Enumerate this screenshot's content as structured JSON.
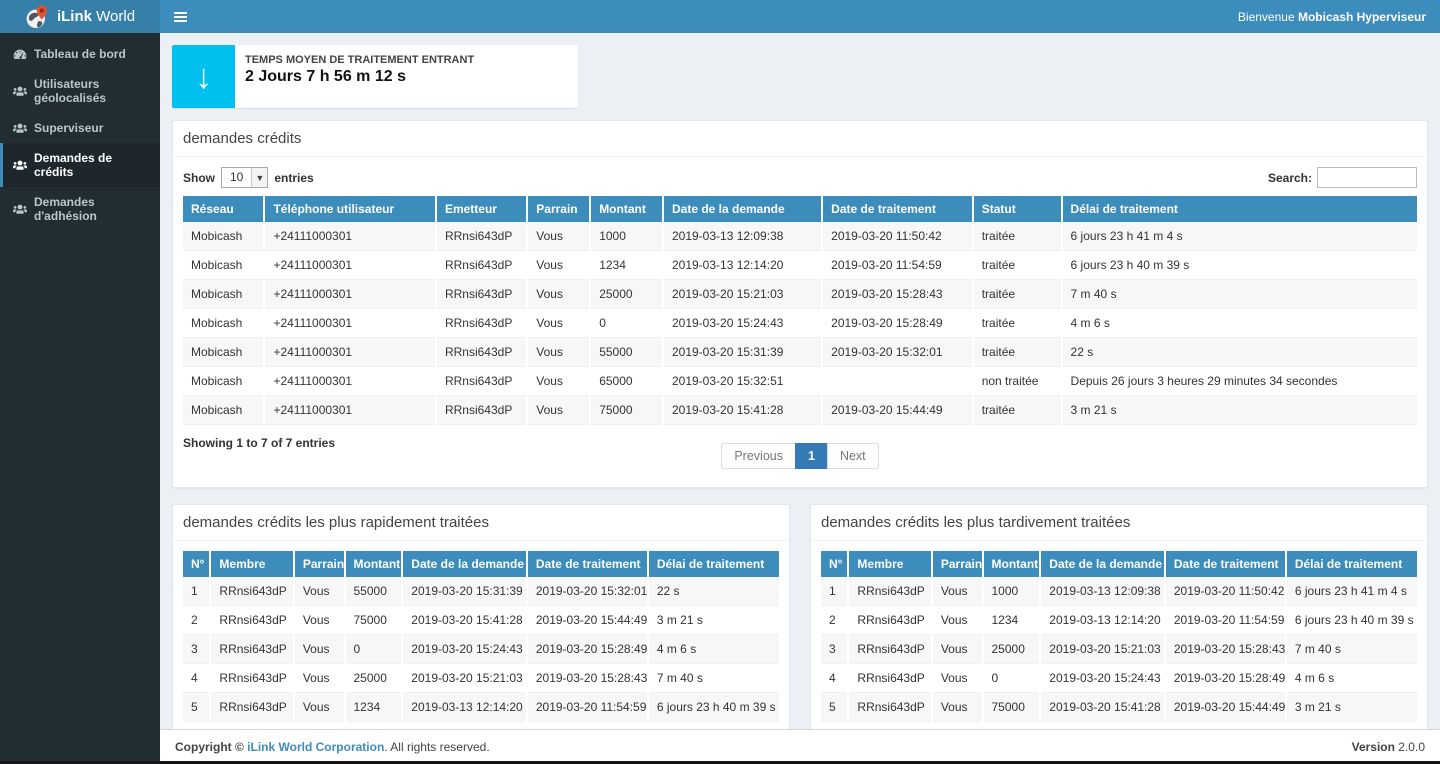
{
  "brand": {
    "name_bold": "iLink",
    "name_light": "World"
  },
  "navbar": {
    "welcome_prefix": "Bienvenue ",
    "welcome_name": "Mobicash Hyperviseur"
  },
  "sidebar": {
    "items": [
      {
        "label": "Tableau de bord",
        "icon": "dashboard-icon",
        "active": false
      },
      {
        "label": "Utilisateurs géolocalisés",
        "icon": "users-icon",
        "active": false
      },
      {
        "label": "Superviseur",
        "icon": "users-icon",
        "active": false
      },
      {
        "label": "Demandes de crédits",
        "icon": "users-icon",
        "active": true
      },
      {
        "label": "Demandes d'adhésion",
        "icon": "users-icon",
        "active": false
      }
    ]
  },
  "stat_card": {
    "icon": "down-arrow-icon",
    "icon_glyph": "↓",
    "label": "TEMPS MOYEN DE TRAITEMENT ENTRANT",
    "value": "2 Jours 7 h 56 m 12 s"
  },
  "credits_table": {
    "title": "demandes crédits",
    "show_label": "Show",
    "page_size": "10",
    "entries_label": "entries",
    "search_label": "Search:",
    "search_value": "",
    "columns": [
      "Réseau",
      "Téléphone utilisateur",
      "Emetteur",
      "Parrain",
      "Montant",
      "Date de la demande",
      "Date de traitement",
      "Statut",
      "Délai de traitement"
    ],
    "rows": [
      [
        "Mobicash",
        "+24111000301",
        "RRnsi643dP",
        "Vous",
        "1000",
        "2019-03-13 12:09:38",
        "2019-03-20 11:50:42",
        "traitée",
        "6 jours 23 h 41 m 4 s"
      ],
      [
        "Mobicash",
        "+24111000301",
        "RRnsi643dP",
        "Vous",
        "1234",
        "2019-03-13 12:14:20",
        "2019-03-20 11:54:59",
        "traitée",
        "6 jours 23 h 40 m 39 s"
      ],
      [
        "Mobicash",
        "+24111000301",
        "RRnsi643dP",
        "Vous",
        "25000",
        "2019-03-20 15:21:03",
        "2019-03-20 15:28:43",
        "traitée",
        "7 m 40 s"
      ],
      [
        "Mobicash",
        "+24111000301",
        "RRnsi643dP",
        "Vous",
        "0",
        "2019-03-20 15:24:43",
        "2019-03-20 15:28:49",
        "traitée",
        "4 m 6 s"
      ],
      [
        "Mobicash",
        "+24111000301",
        "RRnsi643dP",
        "Vous",
        "55000",
        "2019-03-20 15:31:39",
        "2019-03-20 15:32:01",
        "traitée",
        "22 s"
      ],
      [
        "Mobicash",
        "+24111000301",
        "RRnsi643dP",
        "Vous",
        "65000",
        "2019-03-20 15:32:51",
        "",
        "non traitée",
        "Depuis 26 jours 3 heures 29 minutes 34 secondes"
      ],
      [
        "Mobicash",
        "+24111000301",
        "RRnsi643dP",
        "Vous",
        "75000",
        "2019-03-20 15:41:28",
        "2019-03-20 15:44:49",
        "traitée",
        "3 m 21 s"
      ]
    ],
    "info": "Showing 1 to 7 of 7 entries",
    "pagination": {
      "previous": "Previous",
      "current": "1",
      "next": "Next"
    }
  },
  "fastest_table": {
    "title": "demandes crédits les plus rapidement traitées",
    "columns": [
      "N°",
      "Membre",
      "Parrain",
      "Montant",
      "Date de la demande",
      "Date de traitement",
      "Délai de traitement"
    ],
    "rows": [
      [
        "1",
        "RRnsi643dP",
        "Vous",
        "55000",
        "2019-03-20 15:31:39",
        "2019-03-20 15:32:01",
        "22 s"
      ],
      [
        "2",
        "RRnsi643dP",
        "Vous",
        "75000",
        "2019-03-20 15:41:28",
        "2019-03-20 15:44:49",
        "3 m 21 s"
      ],
      [
        "3",
        "RRnsi643dP",
        "Vous",
        "0",
        "2019-03-20 15:24:43",
        "2019-03-20 15:28:49",
        "4 m 6 s"
      ],
      [
        "4",
        "RRnsi643dP",
        "Vous",
        "25000",
        "2019-03-20 15:21:03",
        "2019-03-20 15:28:43",
        "7 m 40 s"
      ],
      [
        "5",
        "RRnsi643dP",
        "Vous",
        "1234",
        "2019-03-13 12:14:20",
        "2019-03-20 11:54:59",
        "6 jours 23 h 40 m 39 s"
      ]
    ]
  },
  "slowest_table": {
    "title": "demandes crédits les plus tardivement traitées",
    "columns": [
      "N°",
      "Membre",
      "Parrain",
      "Montant",
      "Date de la demande",
      "Date de traitement",
      "Délai de traitement"
    ],
    "rows": [
      [
        "1",
        "RRnsi643dP",
        "Vous",
        "1000",
        "2019-03-13 12:09:38",
        "2019-03-20 11:50:42",
        "6 jours 23 h 41 m 4 s"
      ],
      [
        "2",
        "RRnsi643dP",
        "Vous",
        "1234",
        "2019-03-13 12:14:20",
        "2019-03-20 11:54:59",
        "6 jours 23 h 40 m 39 s"
      ],
      [
        "3",
        "RRnsi643dP",
        "Vous",
        "25000",
        "2019-03-20 15:21:03",
        "2019-03-20 15:28:43",
        "7 m 40 s"
      ],
      [
        "4",
        "RRnsi643dP",
        "Vous",
        "0",
        "2019-03-20 15:24:43",
        "2019-03-20 15:28:49",
        "4 m 6 s"
      ],
      [
        "5",
        "RRnsi643dP",
        "Vous",
        "75000",
        "2019-03-20 15:41:28",
        "2019-03-20 15:44:49",
        "3 m 21 s"
      ]
    ]
  },
  "footer": {
    "copyright_bold": "Copyright © ",
    "company": "iLink World Corporation",
    "rights": ". All rights reserved.",
    "version_label": "Version",
    "version_value": " 2.0.0"
  },
  "colors": {
    "navbar": "#3c8dbc",
    "logo_bg": "#367fa9",
    "sidebar_bg": "#222d32",
    "sidebar_active_bg": "#1e282c",
    "stat_icon_bg": "#00c0ef",
    "table_header_bg": "#3c8dbc",
    "pagination_active": "#337ab7",
    "content_bg": "#ecf0f5",
    "link": "#3c8dbc"
  }
}
